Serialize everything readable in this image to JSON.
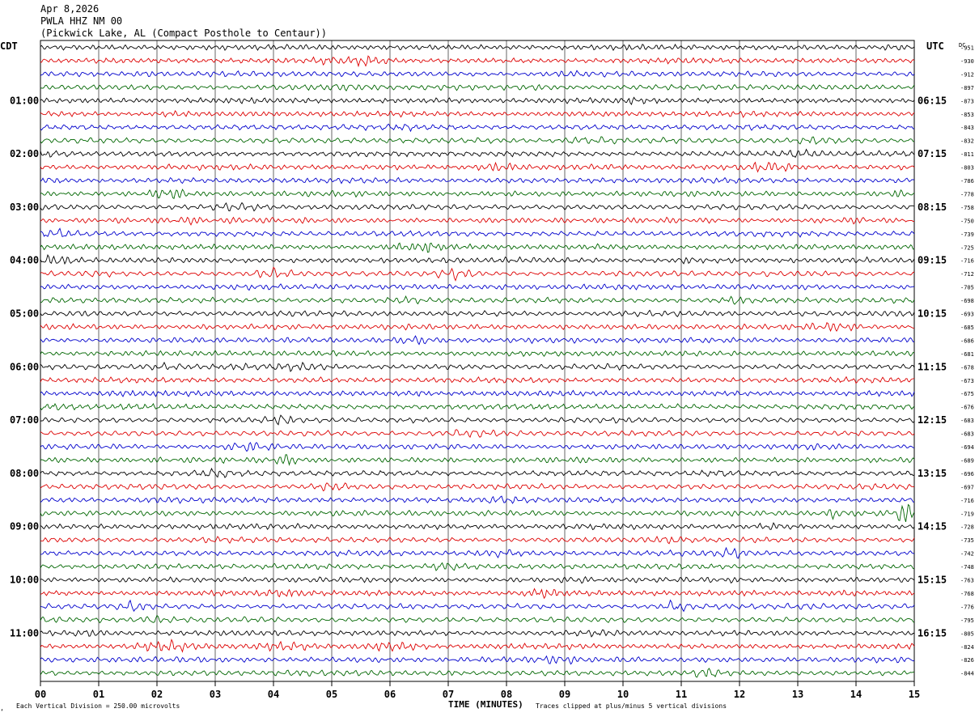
{
  "header": {
    "date": "Apr 8,2026",
    "station": "PWLA HHZ NM 00",
    "location": "(Pickwick Lake, AL (Compact Posthole to Centaur))"
  },
  "left_axis_title": "CDT",
  "right_axis_title": "UTC",
  "dc_title": "DC",
  "footer": {
    "scale_note": "Each Vertical Division =  250.00 microvolts",
    "xlabel": "TIME (MINUTES)",
    "clip_note": "Traces clipped at plus/minus 5 vertical divisions",
    "corner_mark": "‘"
  },
  "chart_data": {
    "type": "line",
    "title": "",
    "xlabel": "TIME (MINUTES)",
    "xlim": [
      0,
      15
    ],
    "x_ticks": [
      "00",
      "01",
      "02",
      "03",
      "04",
      "05",
      "06",
      "07",
      "08",
      "09",
      "10",
      "11",
      "12",
      "13",
      "14",
      "15"
    ],
    "row_interval_minutes": 15,
    "grid": true,
    "trace_colors": [
      "#000000",
      "#dd0000",
      "#0000cc",
      "#006600"
    ],
    "left_hour_labels": [
      "01:00",
      "02:00",
      "03:00",
      "04:00",
      "05:00",
      "06:00",
      "07:00",
      "08:00",
      "09:00",
      "10:00",
      "11:00"
    ],
    "right_hour_labels": [
      "06:15",
      "07:15",
      "08:15",
      "09:15",
      "10:15",
      "11:15",
      "12:15",
      "13:15",
      "14:15",
      "15:15",
      "16:15"
    ],
    "dc_offsets": [
      951,
      930,
      912,
      897,
      873,
      853,
      843,
      832,
      811,
      803,
      786,
      778,
      758,
      750,
      739,
      725,
      716,
      712,
      705,
      698,
      693,
      685,
      686,
      681,
      678,
      673,
      675,
      676,
      683,
      683,
      694,
      689,
      696,
      697,
      716,
      719,
      728,
      735,
      742,
      748,
      763,
      768,
      776,
      795,
      805,
      824,
      826,
      844
    ]
  }
}
